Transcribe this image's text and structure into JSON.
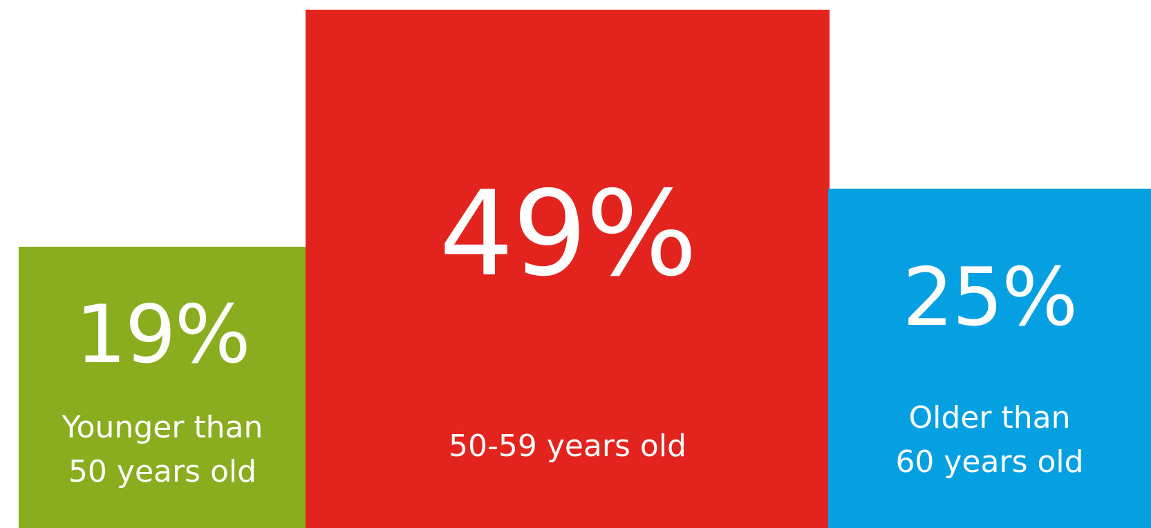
{
  "chart_data": {
    "type": "bar",
    "categories": [
      "Younger than 50 years old",
      "50-59 years old",
      "Older than 60 years old"
    ],
    "values": [
      19,
      49,
      25
    ],
    "value_labels": [
      "19%",
      "49%",
      "25%"
    ],
    "category_lines": [
      [
        "Younger than",
        "50 years old"
      ],
      [
        "50-59 years old"
      ],
      [
        "Older than",
        "60 years old"
      ]
    ],
    "colors": [
      "#8aad1f",
      "#e2231e",
      "#04a0e2"
    ],
    "title": "",
    "xlabel": "",
    "ylabel": "",
    "grid": false,
    "legend": "none"
  }
}
